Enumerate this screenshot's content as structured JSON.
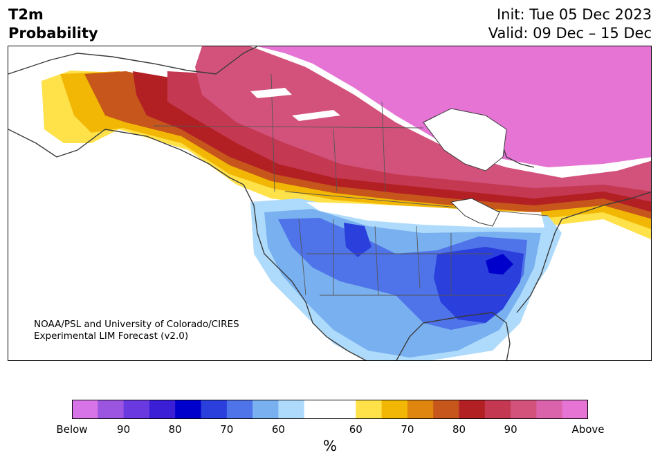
{
  "title": {
    "variable": "T2m",
    "subtitle": "Probability",
    "init": "Init: Tue 05 Dec 2023",
    "valid": "Valid: 09 Dec – 15 Dec"
  },
  "credit": {
    "line1": "NOAA/PSL and University of Colorado/CIRES",
    "line2": "Experimental LIM Forecast (v2.0)"
  },
  "colorbar": {
    "colors": [
      "#d674e8",
      "#9c55e0",
      "#6a3ae0",
      "#3a1fd6",
      "#0000cc",
      "#2a3fdb",
      "#4f73e8",
      "#79b0f0",
      "#aedbfb",
      "#ffffff",
      "#ffffff",
      "#ffe14a",
      "#f2b705",
      "#e0860f",
      "#c6561b",
      "#b22024",
      "#c53852",
      "#d2527c",
      "#db63ab",
      "#e674d5"
    ],
    "labels": [
      "Below",
      "90",
      "80",
      "70",
      "60",
      "60",
      "70",
      "80",
      "90",
      "Above"
    ],
    "unit": "%"
  },
  "map": {
    "region": "North America",
    "palette": {
      "above_strong": "#e674d5",
      "above_high": "#d2527c",
      "above_mid": "#b22024",
      "above_orange": "#e0860f",
      "above_low": "#ffe14a",
      "below_light": "#aedbfb",
      "below_low": "#79b0f0",
      "below_mid": "#4f73e8",
      "below_high": "#2a3fdb",
      "below_strong": "#0000cc",
      "coast": "#3a3a3a",
      "border": "#555555"
    }
  }
}
